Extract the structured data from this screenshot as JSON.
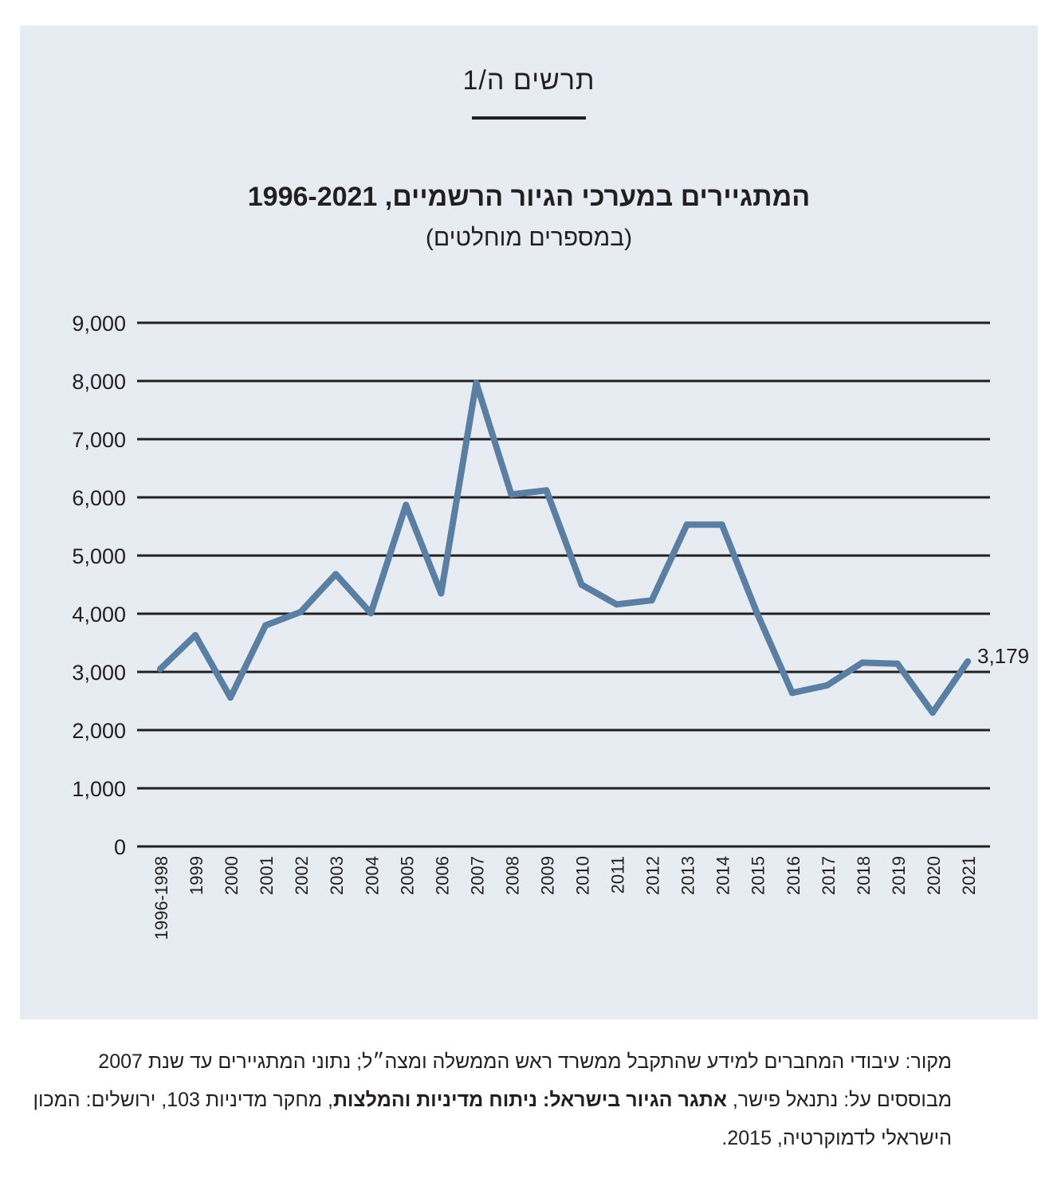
{
  "figure_label": "תרשים ה/1",
  "chart_data": {
    "type": "line",
    "title": "המתגיירים במערכי הגיור הרשמיים, 1996-2021",
    "subtitle": "(במספרים מוחלטים)",
    "xlabel": "",
    "ylabel": "",
    "ylim": [
      0,
      9000
    ],
    "yticks": [
      0,
      1000,
      2000,
      3000,
      4000,
      5000,
      6000,
      7000,
      8000,
      9000
    ],
    "ytick_labels": [
      "0",
      "1,000",
      "2,000",
      "3,000",
      "4,000",
      "5,000",
      "6,000",
      "7,000",
      "8,000",
      "9,000"
    ],
    "grid": true,
    "categories": [
      "1996-1998",
      "1999",
      "2000",
      "2001",
      "2002",
      "2003",
      "2004",
      "2005",
      "2006",
      "2007",
      "2008",
      "2009",
      "2010",
      "2011",
      "2012",
      "2013",
      "2014",
      "2015",
      "2016",
      "2017",
      "2018",
      "2019",
      "2020",
      "2021"
    ],
    "values": [
      3050,
      3630,
      2560,
      3800,
      4030,
      4680,
      4010,
      5870,
      4350,
      7970,
      6050,
      6120,
      4500,
      4160,
      4230,
      5530,
      5530,
      4010,
      2640,
      2770,
      3160,
      3140,
      2300,
      3179
    ],
    "end_label": "3,179",
    "color": "#5b7fa3"
  },
  "source": {
    "prefix": "מקור: עיבודי המחברים למידע שהתקבל ממשרד ראש הממשלה ומצה״ל; נתוני המתגיירים עד שנת 2007 מבוססים על: נתנאל פישר, ",
    "bold1": "אתגר הגיור בישראל: ניתוח מדיניות והמלצות",
    "suffix": ", מחקר מדיניות 103, ירושלים: המכון הישראלי לדמוקרטיה, 2015."
  }
}
